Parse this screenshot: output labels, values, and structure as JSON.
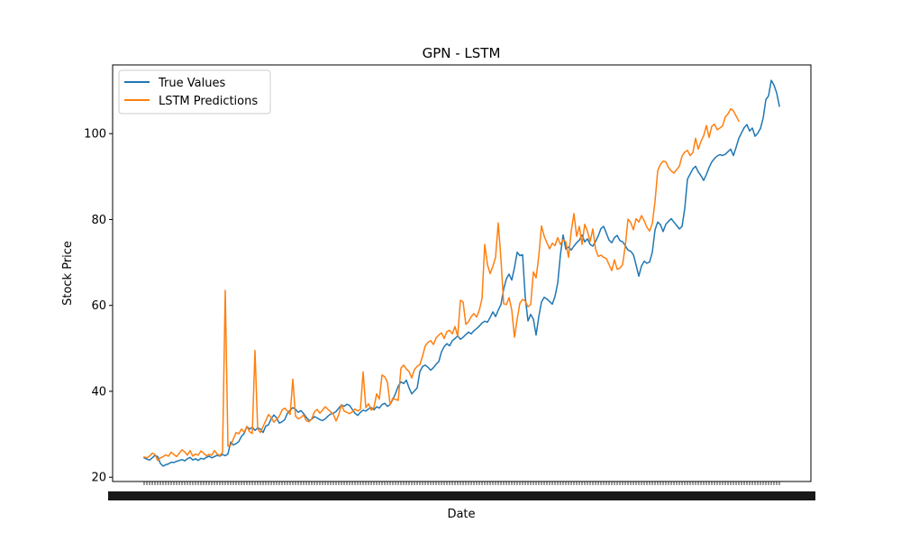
{
  "chart_data": {
    "type": "line",
    "title": "GPN - LSTM",
    "xlabel": "Date",
    "ylabel": "Stock Price",
    "ylim": [
      19,
      116
    ],
    "yticks": [
      20,
      40,
      60,
      80,
      100
    ],
    "grid": false,
    "legend_position": "upper left",
    "series": [
      {
        "name": "True Values",
        "color": "#1f77b4",
        "values": [
          24.5,
          24.2,
          24.0,
          24.5,
          25.1,
          24.8,
          23.2,
          22.6,
          22.9,
          23.1,
          23.5,
          23.4,
          23.7,
          23.9,
          24.1,
          23.8,
          24.3,
          24.6,
          24.0,
          24.3,
          23.9,
          24.4,
          24.2,
          24.6,
          24.9,
          24.5,
          24.8,
          25.1,
          24.9,
          25.3,
          25.0,
          25.4,
          28.2,
          27.5,
          27.8,
          28.3,
          29.5,
          30.2,
          31.8,
          31.2,
          31.6,
          30.9,
          31.5,
          31.2,
          30.4,
          31.9,
          32.2,
          33.6,
          34.5,
          33.8,
          32.6,
          32.9,
          33.4,
          34.9,
          35.6,
          36.2,
          35.8,
          35.1,
          35.5,
          34.8,
          33.9,
          33.2,
          33.5,
          34.1,
          33.8,
          33.4,
          33.2,
          33.6,
          34.2,
          34.7,
          34.9,
          35.3,
          36.1,
          36.8,
          36.5,
          37.0,
          36.7,
          35.8,
          34.9,
          34.4,
          35.1,
          35.6,
          35.4,
          35.9,
          36.2,
          35.7,
          36.4,
          36.1,
          36.9,
          37.2,
          36.5,
          36.9,
          38.1,
          39.5,
          41.2,
          42.2,
          41.8,
          42.6,
          40.8,
          39.4,
          40.1,
          40.8,
          44.6,
          45.8,
          46.1,
          45.6,
          44.9,
          45.5,
          46.3,
          46.9,
          49.2,
          50.4,
          51.1,
          50.6,
          51.8,
          52.3,
          52.9,
          52.1,
          52.6,
          53.2,
          53.8,
          53.4,
          54.1,
          54.6,
          55.2,
          55.9,
          56.3,
          56.1,
          57.2,
          58.5,
          57.4,
          58.9,
          60.2,
          63.8,
          66.2,
          67.3,
          65.9,
          68.8,
          72.4,
          71.6,
          71.8,
          61.8,
          56.4,
          57.9,
          56.8,
          53.1,
          57.4,
          60.8,
          61.9,
          61.5,
          60.9,
          60.3,
          62.1,
          65.2,
          71.8,
          76.4,
          73.1,
          73.6,
          72.9,
          73.8,
          74.6,
          75.2,
          76.4,
          74.8,
          75.5,
          74.2,
          73.8,
          74.9,
          76.2,
          77.9,
          78.4,
          76.8,
          75.2,
          74.6,
          75.8,
          76.3,
          75.1,
          74.8,
          73.9,
          72.9,
          72.6,
          71.8,
          69.4,
          66.8,
          69.2,
          70.3,
          69.8,
          70.1,
          72.4,
          77.6,
          79.4,
          78.8,
          77.2,
          78.9,
          79.6,
          80.2,
          79.4,
          78.6,
          77.8,
          78.4,
          82.6,
          89.4,
          90.6,
          91.8,
          92.4,
          91.1,
          90.2,
          89.1,
          90.5,
          92.1,
          93.4,
          94.2,
          94.8,
          95.1,
          94.9,
          95.2,
          95.8,
          96.4,
          94.9,
          96.8,
          98.9,
          100.2,
          101.4,
          102.1,
          100.6,
          101.3,
          99.4,
          100.1,
          101.2,
          103.6,
          107.9,
          108.8,
          112.4,
          111.3,
          109.5,
          106.4
        ]
      },
      {
        "name": "LSTM Predictions",
        "color": "#ff7f0e",
        "values": [
          24.7,
          24.5,
          24.9,
          25.6,
          25.3,
          23.9,
          24.5,
          24.8,
          25.2,
          24.9,
          25.8,
          25.3,
          24.8,
          25.6,
          26.4,
          25.9,
          25.1,
          26.2,
          24.9,
          25.4,
          25.1,
          26.1,
          25.6,
          25.0,
          25.3,
          25.1,
          26.2,
          25.4,
          25.0,
          25.8,
          63.5,
          27.2,
          27.4,
          28.9,
          30.4,
          30.1,
          31.2,
          30.5,
          31.8,
          30.6,
          30.2,
          49.5,
          31.2,
          30.4,
          31.8,
          33.2,
          34.6,
          33.9,
          32.8,
          33.5,
          34.2,
          35.6,
          36.1,
          35.4,
          34.6,
          42.8,
          34.2,
          33.6,
          33.9,
          34.5,
          33.1,
          32.9,
          33.6,
          35.2,
          35.8,
          34.9,
          35.6,
          36.4,
          35.8,
          35.2,
          34.6,
          33.1,
          34.6,
          36.9,
          35.4,
          35.1,
          34.8,
          35.2,
          35.9,
          35.4,
          35.8,
          44.5,
          36.2,
          37.1,
          35.6,
          36.2,
          39.4,
          38.2,
          43.8,
          43.4,
          42.1,
          36.9,
          38.4,
          38.1,
          37.9,
          45.4,
          46.1,
          45.2,
          44.6,
          43.1,
          45.1,
          45.8,
          46.2,
          48.2,
          50.6,
          51.4,
          51.8,
          50.9,
          52.4,
          53.1,
          53.6,
          52.3,
          53.9,
          54.2,
          53.4,
          55.1,
          52.8,
          61.2,
          60.8,
          55.6,
          56.2,
          57.4,
          58.1,
          57.3,
          58.9,
          61.6,
          74.2,
          69.5,
          67.4,
          69.1,
          71.2,
          79.2,
          70.8,
          60.4,
          60.2,
          61.8,
          58.9,
          52.6,
          56.8,
          60.5,
          61.4,
          61.0,
          59.7,
          60.2,
          67.8,
          66.4,
          71.5,
          78.5,
          76.1,
          74.6,
          73.2,
          74.5,
          73.9,
          75.8,
          74.2,
          75.3,
          74.8,
          71.2,
          77.3,
          81.4,
          76.1,
          78.4,
          74.2,
          78.9,
          77.2,
          74.9,
          77.8,
          73.1,
          71.4,
          71.7,
          71.2,
          70.9,
          69.5,
          68.1,
          70.6,
          68.4,
          68.7,
          69.5,
          73.9,
          80.1,
          79.3,
          77.6,
          80.2,
          79.4,
          80.9,
          79.7,
          78.2,
          77.3,
          79.1,
          84.2,
          91.4,
          92.8,
          93.6,
          93.4,
          92.1,
          91.3,
          90.8,
          91.6,
          92.4,
          94.8,
          95.7,
          96.1,
          94.9,
          95.6,
          98.9,
          96.4,
          98.2,
          99.5,
          101.9,
          99.1,
          101.7,
          102.2,
          100.9,
          101.3,
          101.8,
          103.9,
          104.6,
          105.8,
          105.3,
          104.1,
          102.9
        ]
      }
    ]
  }
}
